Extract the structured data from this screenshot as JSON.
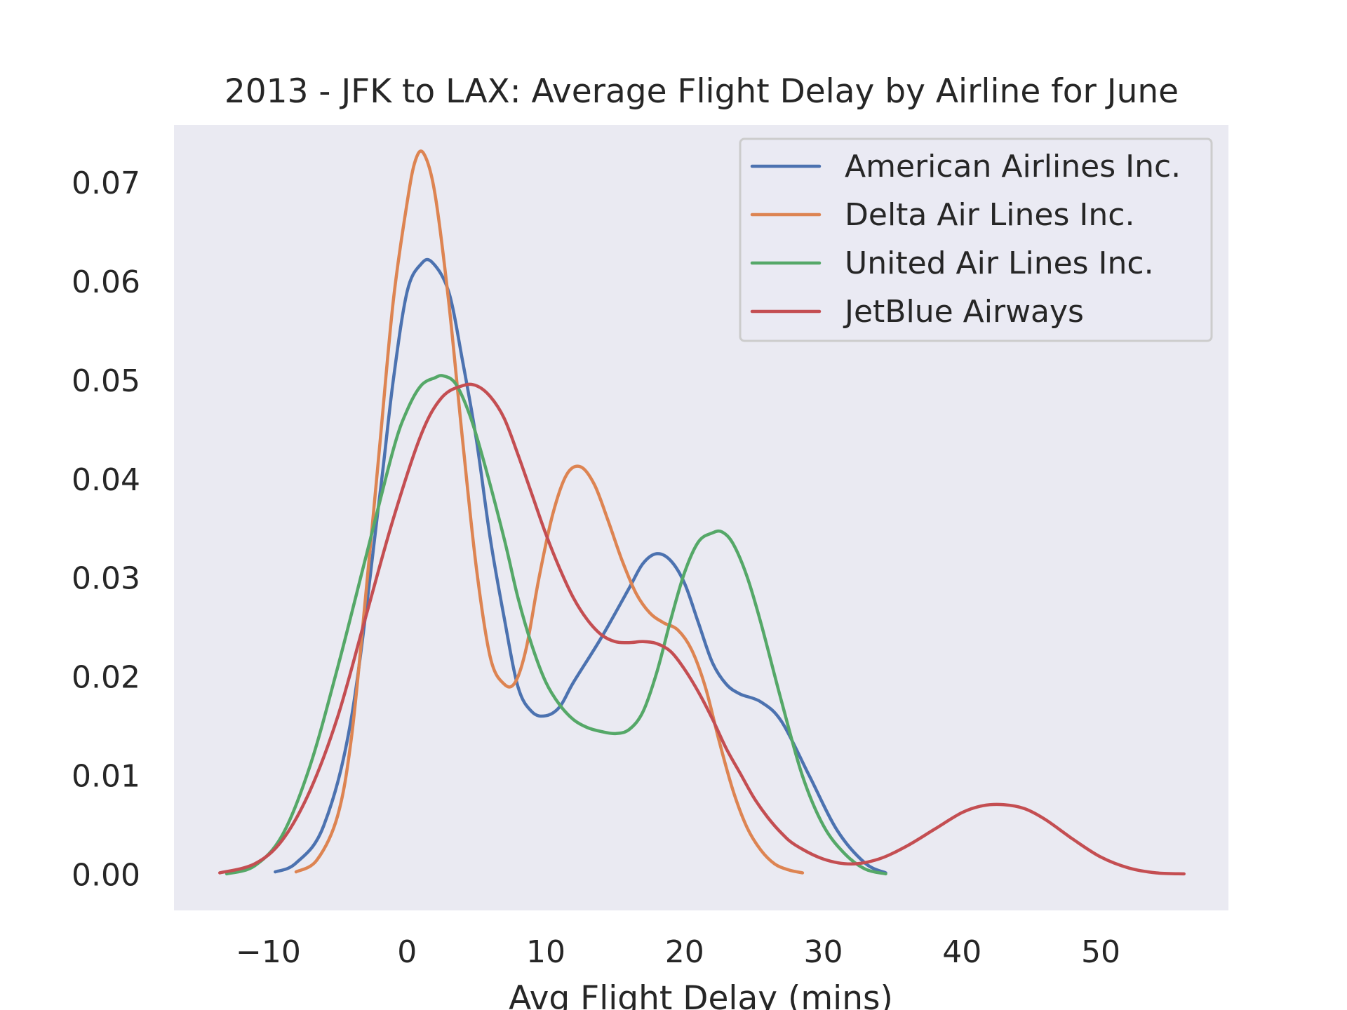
{
  "chart_data": {
    "type": "line",
    "title": "2013 - JFK to LAX: Average Flight Delay by Airline for June",
    "xlabel": "Avg Flight Delay (mins)",
    "ylabel": "",
    "xlim": [
      -16.8,
      59.2
    ],
    "ylim": [
      -0.0036,
      0.0759
    ],
    "xticks": [
      -10,
      0,
      10,
      20,
      30,
      40,
      50
    ],
    "xtick_labels": [
      "−10",
      "0",
      "10",
      "20",
      "30",
      "40",
      "50"
    ],
    "yticks": [
      0.0,
      0.01,
      0.02,
      0.03,
      0.04,
      0.05,
      0.06,
      0.07
    ],
    "ytick_labels": [
      "0.00",
      "0.01",
      "0.02",
      "0.03",
      "0.04",
      "0.05",
      "0.06",
      "0.07"
    ],
    "grid": false,
    "legend_position": "top-right",
    "background_color": "#eaeaf2",
    "series": [
      {
        "name": "American Airlines Inc.",
        "color": "#4c72b0",
        "x": [
          -9.5,
          -8,
          -6,
          -4,
          -2,
          -1,
          0,
          1,
          1.8,
          3,
          4,
          5,
          6,
          7,
          8,
          9,
          10,
          11,
          12,
          14,
          16,
          17,
          18,
          19,
          20,
          21,
          22,
          23,
          24,
          25.5,
          27,
          29,
          31,
          33,
          34.5
        ],
        "y": [
          0.0003,
          0.0012,
          0.005,
          0.016,
          0.038,
          0.05,
          0.059,
          0.0618,
          0.062,
          0.059,
          0.052,
          0.044,
          0.034,
          0.026,
          0.019,
          0.0165,
          0.0161,
          0.017,
          0.0195,
          0.024,
          0.029,
          0.0315,
          0.0325,
          0.0318,
          0.0295,
          0.0255,
          0.0215,
          0.0193,
          0.0183,
          0.0175,
          0.0155,
          0.01,
          0.0045,
          0.0012,
          0.0002
        ]
      },
      {
        "name": "Delta Air Lines Inc.",
        "color": "#dd8452",
        "x": [
          -8,
          -6.5,
          -5,
          -4,
          -3,
          -2,
          -1,
          0,
          0.6,
          1.2,
          2,
          3,
          4,
          5,
          6,
          7,
          7.8,
          8.6,
          9.5,
          10.5,
          11.5,
          12.5,
          13.5,
          14.5,
          15.5,
          16.5,
          17.5,
          18.5,
          19.5,
          20.5,
          21.5,
          22.5,
          23.5,
          24.5,
          25.5,
          26.5,
          27.5,
          28.5
        ],
        "y": [
          0.0003,
          0.0015,
          0.006,
          0.014,
          0.028,
          0.043,
          0.058,
          0.068,
          0.0723,
          0.073,
          0.069,
          0.058,
          0.044,
          0.031,
          0.022,
          0.0193,
          0.0195,
          0.023,
          0.03,
          0.0365,
          0.0405,
          0.0413,
          0.0395,
          0.0358,
          0.0318,
          0.0285,
          0.0265,
          0.0255,
          0.0248,
          0.0228,
          0.019,
          0.0135,
          0.0085,
          0.0048,
          0.0025,
          0.0011,
          0.0005,
          0.0002
        ]
      },
      {
        "name": "United Air Lines Inc.",
        "color": "#55a868",
        "x": [
          -13,
          -11,
          -9,
          -7,
          -5,
          -3,
          -1,
          0,
          1,
          2,
          2.6,
          3.5,
          4.5,
          5.5,
          7,
          8,
          9,
          10,
          11,
          12,
          13,
          14,
          15,
          16,
          17,
          18,
          19,
          20,
          21,
          22,
          22.7,
          23.5,
          24.5,
          25.5,
          27,
          28.5,
          30,
          31.5,
          33,
          34.5
        ],
        "y": [
          0.0001,
          0.0009,
          0.004,
          0.011,
          0.021,
          0.032,
          0.043,
          0.047,
          0.0495,
          0.0503,
          0.0505,
          0.0497,
          0.0466,
          0.042,
          0.034,
          0.028,
          0.0232,
          0.0195,
          0.0172,
          0.0157,
          0.0149,
          0.0145,
          0.0143,
          0.0147,
          0.0165,
          0.0205,
          0.0258,
          0.0306,
          0.0337,
          0.0346,
          0.0347,
          0.0335,
          0.0302,
          0.0255,
          0.0175,
          0.01,
          0.005,
          0.0022,
          0.0006,
          0.0001
        ]
      },
      {
        "name": "JetBlue Airways",
        "color": "#c44e52",
        "x": [
          -13.5,
          -11,
          -9,
          -7,
          -5,
          -3,
          -1,
          1,
          2.5,
          4,
          5,
          6,
          7,
          8,
          9,
          10,
          11,
          12,
          13,
          14,
          15,
          16,
          17,
          18,
          19,
          20,
          21,
          22,
          23,
          24,
          25,
          26,
          27,
          28,
          30,
          32,
          34,
          36,
          38,
          40,
          41.5,
          43,
          44.5,
          46,
          48,
          50,
          52,
          54,
          56
        ],
        "y": [
          0.0002,
          0.0011,
          0.0035,
          0.0085,
          0.016,
          0.026,
          0.036,
          0.0445,
          0.0483,
          0.0495,
          0.0495,
          0.0484,
          0.0462,
          0.0425,
          0.0385,
          0.0345,
          0.031,
          0.028,
          0.0258,
          0.0243,
          0.0236,
          0.0235,
          0.0236,
          0.0234,
          0.0226,
          0.0208,
          0.0185,
          0.0158,
          0.0128,
          0.0103,
          0.0078,
          0.0058,
          0.0042,
          0.003,
          0.0016,
          0.0011,
          0.0016,
          0.0029,
          0.0046,
          0.0063,
          0.007,
          0.0071,
          0.0067,
          0.0056,
          0.0036,
          0.0018,
          0.0007,
          0.0002,
          0.0001
        ]
      }
    ]
  }
}
